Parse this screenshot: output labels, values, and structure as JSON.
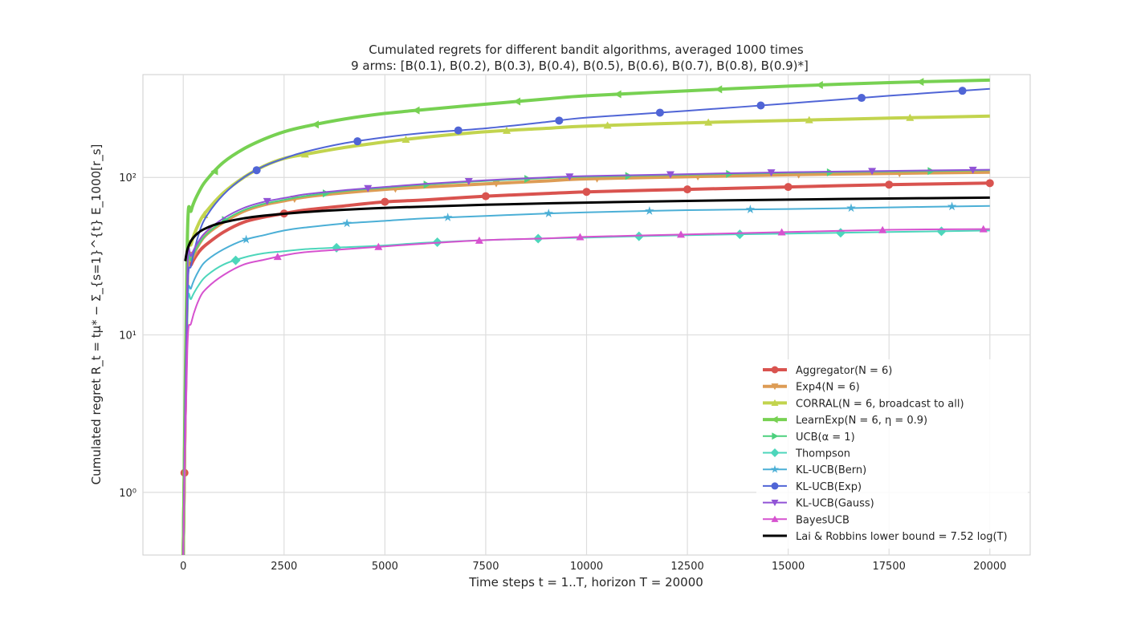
{
  "chart_data": {
    "type": "line",
    "title": "Cumulated regrets for different bandit algorithms, averaged 1000 times",
    "subtitle": "9 arms: [B(0.1), B(0.2), B(0.3), B(0.4), B(0.5), B(0.6), B(0.7), B(0.8), B(0.9)*]",
    "xlabel": "Time steps t = 1..T, horizon T = 20000",
    "ylabel": "Cumulated regret R_t = tμ* − Σ_{s=1}^{t} E_1000[r_s]",
    "xlim": [
      -1000,
      21000
    ],
    "ylim": [
      0.4,
      450
    ],
    "yscale": "log",
    "grid": true,
    "legend_position": "lower-right",
    "x_ticks": [
      "0",
      "2500",
      "5000",
      "7500",
      "10000",
      "12500",
      "15000",
      "17500",
      "20000"
    ],
    "y_ticks": [
      {
        "label": "10⁰",
        "value": 1
      },
      {
        "label": "10¹",
        "value": 10
      },
      {
        "label": "10²",
        "value": 100
      }
    ],
    "x": [
      0,
      100,
      200,
      400,
      600,
      1000,
      1500,
      2000,
      2500,
      3000,
      4000,
      5000,
      6000,
      7500,
      9000,
      10000,
      12500,
      15000,
      17500,
      20000
    ],
    "series": [
      {
        "name": "Aggregator(N = 6)",
        "color": "#d9534f",
        "width": 4,
        "marker": "circle",
        "values": [
          0.4,
          22,
          28,
          34,
          38,
          45,
          52,
          56,
          59,
          62,
          66,
          70,
          72,
          76,
          79,
          81,
          84,
          87,
          90,
          92
        ]
      },
      {
        "name": "Exp4(N = 6)",
        "color": "#dd9c55",
        "width": 4,
        "marker": "triangle-down",
        "values": [
          0.4,
          22,
          30,
          38,
          44,
          52,
          61,
          67,
          71,
          75,
          80,
          84,
          87,
          91,
          95,
          98,
          101,
          104,
          106,
          108
        ]
      },
      {
        "name": "CORRAL(N = 6, broadcast to all)",
        "color": "#c2d44e",
        "width": 4,
        "marker": "triangle-up",
        "values": [
          0.4,
          25,
          38,
          52,
          62,
          80,
          100,
          118,
          132,
          140,
          155,
          168,
          180,
          195,
          205,
          212,
          222,
          230,
          238,
          245
        ]
      },
      {
        "name": "LearnExp(N = 6, η = 0.9)",
        "color": "#77d152",
        "width": 4,
        "marker": "triangle-left",
        "values": [
          0.4,
          40,
          62,
          82,
          98,
          125,
          152,
          175,
          195,
          210,
          235,
          255,
          270,
          292,
          315,
          330,
          355,
          380,
          400,
          415
        ]
      },
      {
        "name": "UCB(α = 1)",
        "color": "#4cd07d",
        "width": 2,
        "marker": "triangle-right",
        "values": [
          0.4,
          22,
          30,
          38,
          44,
          53,
          62,
          68,
          72,
          76,
          82,
          86,
          90,
          95,
          99,
          101,
          104,
          107,
          109,
          111
        ]
      },
      {
        "name": "Thompson",
        "color": "#4dd6bb",
        "width": 2,
        "marker": "diamond",
        "values": [
          0.4,
          13,
          17,
          21,
          24,
          28,
          31,
          33,
          34,
          35,
          36,
          37,
          38.5,
          40,
          41,
          41.5,
          43,
          44,
          45,
          46
        ]
      },
      {
        "name": "KL-UCB(Bern)",
        "color": "#4bafd6",
        "width": 2,
        "marker": "star",
        "values": [
          0.4,
          14,
          20,
          26,
          30,
          35,
          40,
          43,
          46,
          48,
          51,
          53,
          55,
          57,
          59,
          60,
          62,
          63,
          64.5,
          66
        ]
      },
      {
        "name": "KL-UCB(Exp)",
        "color": "#5065d6",
        "width": 2,
        "marker": "circle",
        "values": [
          0.4,
          17,
          28,
          45,
          58,
          78,
          100,
          118,
          132,
          145,
          165,
          180,
          192,
          205,
          225,
          240,
          265,
          295,
          330,
          365
        ]
      },
      {
        "name": "KL-UCB(Gauss)",
        "color": "#9153d6",
        "width": 2,
        "marker": "triangle-down",
        "values": [
          0.4,
          24,
          32,
          40,
          46,
          55,
          64,
          70,
          74,
          78,
          83,
          87,
          91,
          96,
          100,
          102,
          105,
          108,
          110,
          112
        ]
      },
      {
        "name": "BayesUCB",
        "color": "#d652cf",
        "width": 2,
        "marker": "triangle-up",
        "values": [
          0.4,
          8,
          12,
          17,
          20,
          24,
          28,
          30,
          32,
          33.5,
          35,
          36.5,
          38,
          40,
          41,
          42,
          43.5,
          45,
          46.5,
          47
        ]
      }
    ],
    "lower_bound": {
      "name": "Lai & Robbins lower bound = 7.52 log(T)",
      "color": "#000000",
      "coefficient": 7.52,
      "x_start": 50
    }
  }
}
